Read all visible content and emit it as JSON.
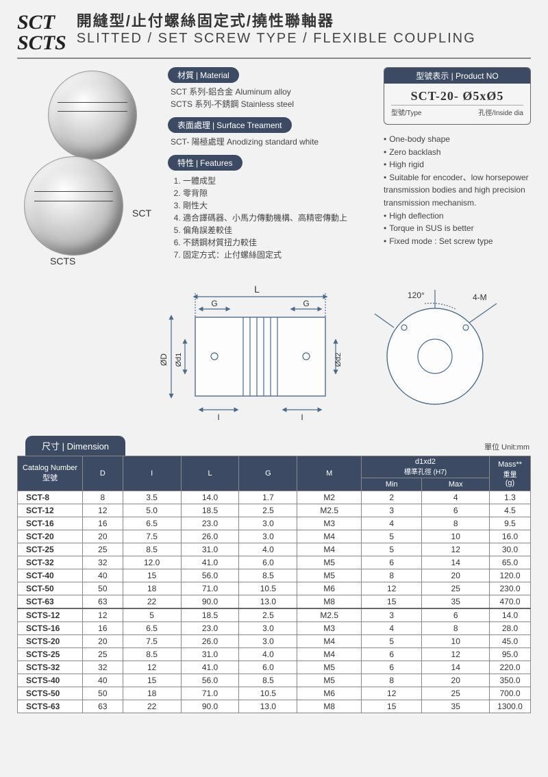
{
  "title": {
    "code1": "SCT",
    "code2": "SCTS",
    "cn": "開縫型/止付螺絲固定式/撓性聯軸器",
    "en": "SLITTED / SET SCREW TYPE / FLEXIBLE COUPLING"
  },
  "product_image_labels": {
    "sct": "SCT",
    "scts": "SCTS"
  },
  "section_material": {
    "badge_cn": "材質",
    "badge_en": "Material",
    "line1": "SCT 系列-鋁合金 Aluminum alloy",
    "line2": "SCTS 系列-不銹鋼 Stainless steel"
  },
  "section_surface": {
    "badge_cn": "表面處理",
    "badge_en": "Surface Treament",
    "line1": "SCT- 陽極處理 Anodizing standard white"
  },
  "section_features": {
    "badge_cn": "特性",
    "badge_en": "Features",
    "items_cn": [
      "一體成型",
      "零背隙",
      "剛性大",
      "適合譯碼器、小馬力傳動機構、高精密傳動上",
      "偏角誤差較佳",
      "不銹鋼材質扭力較佳",
      "固定方式：止付螺絲固定式"
    ],
    "items_en": [
      "One-body shape",
      "Zero backlash",
      "High rigid",
      "Suitable for encoder、low horsepower transmission bodies and high precision transmission mechanism.",
      "High deflection",
      "Torque in SUS is better",
      "Fixed mode : Set screw type"
    ]
  },
  "product_no": {
    "badge_cn": "型號表示",
    "badge_en": "Product NO",
    "example": "SCT-20- Ø5xØ5",
    "sub_left_cn": "型號",
    "sub_left_en": "Type",
    "sub_right_cn": "孔徑",
    "sub_right_en": "Inside dia"
  },
  "diagram": {
    "labels": {
      "L": "L",
      "G": "G",
      "I": "I",
      "D": "ØD",
      "d1": "Ød1",
      "d2": "Ød2",
      "angle": "120°",
      "M": "4-M"
    },
    "colors": {
      "stroke": "#4a6a8a",
      "dash": "#6a8aaa",
      "bg": "#f2f2f2"
    }
  },
  "dimension": {
    "tab_cn": "尺寸",
    "tab_en": "Dimension",
    "unit_note": "單位 Unit:mm",
    "headers": {
      "catalog_cn": "Catalog Number",
      "catalog_sub": "型號",
      "D": "D",
      "I": "I",
      "L": "L",
      "G": "G",
      "M": "M",
      "d1d2": "d1xd2",
      "d1d2_sub": "標準孔徑 (H7)",
      "min": "Min",
      "max": "Max",
      "mass": "Mass**",
      "mass_sub": "重量",
      "mass_unit": "(g)"
    },
    "rows": [
      [
        "SCT-8",
        "8",
        "3.5",
        "14.0",
        "1.7",
        "M2",
        "2",
        "4",
        "1.3"
      ],
      [
        "SCT-12",
        "12",
        "5.0",
        "18.5",
        "2.5",
        "M2.5",
        "3",
        "6",
        "4.5"
      ],
      [
        "SCT-16",
        "16",
        "6.5",
        "23.0",
        "3.0",
        "M3",
        "4",
        "8",
        "9.5"
      ],
      [
        "SCT-20",
        "20",
        "7.5",
        "26.0",
        "3.0",
        "M4",
        "5",
        "10",
        "16.0"
      ],
      [
        "SCT-25",
        "25",
        "8.5",
        "31.0",
        "4.0",
        "M4",
        "5",
        "12",
        "30.0"
      ],
      [
        "SCT-32",
        "32",
        "12.0",
        "41.0",
        "6.0",
        "M5",
        "6",
        "14",
        "65.0"
      ],
      [
        "SCT-40",
        "40",
        "15",
        "56.0",
        "8.5",
        "M5",
        "8",
        "20",
        "120.0"
      ],
      [
        "SCT-50",
        "50",
        "18",
        "71.0",
        "10.5",
        "M6",
        "12",
        "25",
        "230.0"
      ],
      [
        "SCT-63",
        "63",
        "22",
        "90.0",
        "13.0",
        "M8",
        "15",
        "35",
        "470.0"
      ],
      [
        "SCTS-12",
        "12",
        "5",
        "18.5",
        "2.5",
        "M2.5",
        "3",
        "6",
        "14.0"
      ],
      [
        "SCTS-16",
        "16",
        "6.5",
        "23.0",
        "3.0",
        "M3",
        "4",
        "8",
        "28.0"
      ],
      [
        "SCTS-20",
        "20",
        "7.5",
        "26.0",
        "3.0",
        "M4",
        "5",
        "10",
        "45.0"
      ],
      [
        "SCTS-25",
        "25",
        "8.5",
        "31.0",
        "4.0",
        "M4",
        "6",
        "12",
        "95.0"
      ],
      [
        "SCTS-32",
        "32",
        "12",
        "41.0",
        "6.0",
        "M5",
        "6",
        "14",
        "220.0"
      ],
      [
        "SCTS-40",
        "40",
        "15",
        "56.0",
        "8.5",
        "M5",
        "8",
        "20",
        "350.0"
      ],
      [
        "SCTS-50",
        "50",
        "18",
        "71.0",
        "10.5",
        "M6",
        "12",
        "25",
        "700.0"
      ],
      [
        "SCTS-63",
        "63",
        "22",
        "90.0",
        "13.0",
        "M8",
        "15",
        "35",
        "1300.0"
      ]
    ]
  }
}
